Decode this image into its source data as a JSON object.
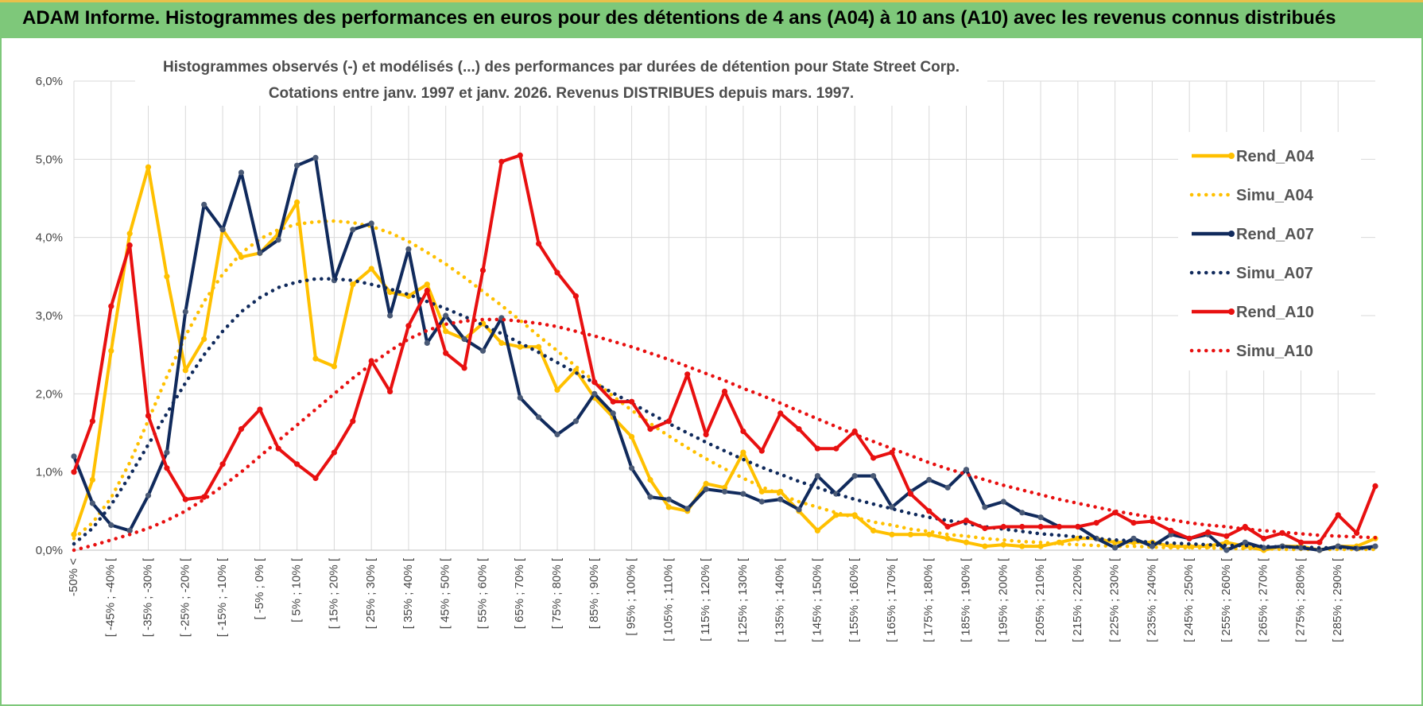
{
  "banner": {
    "title": "ADAM Informe. Histogrammes des performances en euros pour des détentions de 4 ans (A04) à 10 ans (A10) avec les revenus connus distribués"
  },
  "chart_data": {
    "type": "line",
    "title_line1": "Histogrammes observés (-) et modélisés (...) des performances par durées de détention pour State Street Corp.",
    "title_line2": "Cotations entre janv. 1997 et janv. 2026. Revenus DISTRIBUES depuis mars. 1997.",
    "ylim": [
      0,
      6
    ],
    "y_ticks": [
      "0,0%",
      "1,0%",
      "2,0%",
      "3,0%",
      "4,0%",
      "5,0%",
      "6,0%"
    ],
    "x_labels": [
      "-50% <",
      "[ -45% ; -40% [",
      "[ -35% ; -30% [",
      "[ -25% ; -20% [",
      "[ -15% ; -10% [",
      "[ -5% ; 0% [",
      "[ 5% ; 10% [",
      "[ 15% ; 20% [",
      "[ 25% ; 30% [",
      "[ 35% ; 40% [",
      "[ 45% ; 50% [",
      "[ 55% ; 60% [",
      "[ 65% ; 70% [",
      "[ 75% ; 80% [",
      "[ 85% ; 90% [",
      "[ 95% ; 100% [",
      "[ 105% ; 110% [",
      "[ 115% ; 120% [",
      "[ 125% ; 130% [",
      "[ 135% ; 140% [",
      "[ 145% ; 150% [",
      "[ 155% ; 160% [",
      "[ 165% ; 170% [",
      "[ 175% ; 180% [",
      "[ 185% ; 190% [",
      "[ 195% ; 200% [",
      "[ 205% ; 210% [",
      "[ 215% ; 220% [",
      "[ 225% ; 230% [",
      "[ 235% ; 240% [",
      "[ 245% ; 250% [",
      "[ 255% ; 260% [",
      "[ 265% ; 270% [",
      "[ 275% ; 280% [",
      "[ 285% ; 290% ["
    ],
    "n_points": 71,
    "series": [
      {
        "name": "Rend_A04",
        "color": "#FFC000",
        "style": "solid",
        "values": [
          0.2,
          0.9,
          2.55,
          4.05,
          4.9,
          3.5,
          2.3,
          2.7,
          4.1,
          3.75,
          3.8,
          4.05,
          4.45,
          2.45,
          2.35,
          3.4,
          3.6,
          3.3,
          3.25,
          3.4,
          2.8,
          2.7,
          2.9,
          2.65,
          2.6,
          2.6,
          2.05,
          2.3,
          1.95,
          1.7,
          1.45,
          0.9,
          0.55,
          0.5,
          0.85,
          0.8,
          1.25,
          0.75,
          0.75,
          0.5,
          0.25,
          0.45,
          0.45,
          0.25,
          0.2,
          0.2,
          0.2,
          0.15,
          0.1,
          0.05,
          0.07,
          0.05,
          0.05,
          0.1,
          0.15,
          0.15,
          0.1,
          0.1,
          0.1,
          0.05,
          0.05,
          0.05,
          0.1,
          0.05,
          0.0,
          0.05,
          0.05,
          0.0,
          0.05,
          0.05,
          0.15
        ]
      },
      {
        "name": "Simu_A04",
        "color": "#FFC000",
        "style": "dotted",
        "values": [
          0.15,
          0.35,
          0.67,
          1.12,
          1.66,
          2.22,
          2.74,
          3.18,
          3.53,
          3.8,
          3.98,
          4.1,
          4.17,
          4.2,
          4.21,
          4.19,
          4.14,
          4.06,
          3.95,
          3.81,
          3.66,
          3.49,
          3.31,
          3.13,
          2.94,
          2.74,
          2.55,
          2.35,
          2.16,
          1.97,
          1.79,
          1.62,
          1.46,
          1.31,
          1.17,
          1.04,
          0.92,
          0.81,
          0.71,
          0.62,
          0.55,
          0.48,
          0.42,
          0.36,
          0.32,
          0.27,
          0.24,
          0.2,
          0.18,
          0.15,
          0.13,
          0.11,
          0.1,
          0.08,
          0.07,
          0.06,
          0.05,
          0.05,
          0.04,
          0.03,
          0.03,
          0.03,
          0.02,
          0.02,
          0.02,
          0.01,
          0.01,
          0.01,
          0.01,
          0.01,
          0.01
        ]
      },
      {
        "name": "Rend_A07",
        "color": "#102A5C",
        "style": "solid",
        "values": [
          1.2,
          0.6,
          0.32,
          0.25,
          0.7,
          1.25,
          3.05,
          4.42,
          4.1,
          4.83,
          3.8,
          3.97,
          4.92,
          5.02,
          3.45,
          4.1,
          4.18,
          3.0,
          3.85,
          2.65,
          3.0,
          2.7,
          2.55,
          2.97,
          1.95,
          1.7,
          1.48,
          1.65,
          2.0,
          1.75,
          1.05,
          0.68,
          0.65,
          0.53,
          0.78,
          0.75,
          0.72,
          0.62,
          0.65,
          0.52,
          0.95,
          0.72,
          0.95,
          0.95,
          0.55,
          0.75,
          0.9,
          0.8,
          1.03,
          0.55,
          0.62,
          0.48,
          0.42,
          0.3,
          0.3,
          0.15,
          0.03,
          0.15,
          0.05,
          0.2,
          0.15,
          0.2,
          0.0,
          0.1,
          0.03,
          0.05,
          0.03,
          0.0,
          0.05,
          0.02,
          0.05
        ]
      },
      {
        "name": "Simu_A07",
        "color": "#102A5C",
        "style": "dotted",
        "values": [
          0.08,
          0.28,
          0.58,
          0.95,
          1.35,
          1.75,
          2.14,
          2.5,
          2.8,
          3.05,
          3.23,
          3.36,
          3.43,
          3.47,
          3.47,
          3.45,
          3.4,
          3.34,
          3.27,
          3.18,
          3.09,
          2.99,
          2.88,
          2.77,
          2.65,
          2.53,
          2.4,
          2.27,
          2.14,
          2.01,
          1.88,
          1.75,
          1.62,
          1.5,
          1.38,
          1.27,
          1.16,
          1.06,
          0.97,
          0.88,
          0.8,
          0.72,
          0.65,
          0.59,
          0.53,
          0.47,
          0.42,
          0.38,
          0.34,
          0.3,
          0.27,
          0.24,
          0.21,
          0.19,
          0.17,
          0.15,
          0.13,
          0.12,
          0.1,
          0.09,
          0.08,
          0.07,
          0.06,
          0.06,
          0.05,
          0.04,
          0.04,
          0.03,
          0.03,
          0.03,
          0.02
        ]
      },
      {
        "name": "Rend_A10",
        "color": "#E81010",
        "style": "solid",
        "values": [
          1.0,
          1.65,
          3.12,
          3.9,
          1.72,
          1.05,
          0.65,
          0.68,
          1.1,
          1.55,
          1.8,
          1.3,
          1.1,
          0.92,
          1.25,
          1.65,
          2.42,
          2.03,
          2.87,
          3.32,
          2.52,
          2.33,
          3.58,
          4.97,
          5.05,
          3.92,
          3.55,
          3.25,
          2.15,
          1.9,
          1.9,
          1.55,
          1.65,
          2.25,
          1.48,
          2.03,
          1.52,
          1.27,
          1.75,
          1.55,
          1.3,
          1.3,
          1.52,
          1.18,
          1.25,
          0.72,
          0.5,
          0.3,
          0.38,
          0.28,
          0.3,
          0.3,
          0.3,
          0.3,
          0.3,
          0.35,
          0.48,
          0.35,
          0.37,
          0.25,
          0.15,
          0.23,
          0.18,
          0.3,
          0.15,
          0.22,
          0.1,
          0.1,
          0.45,
          0.22,
          0.82
        ]
      },
      {
        "name": "Simu_A10",
        "color": "#E81010",
        "style": "dotted",
        "values": [
          0.0,
          0.06,
          0.13,
          0.2,
          0.28,
          0.38,
          0.5,
          0.65,
          0.82,
          1.0,
          1.2,
          1.4,
          1.6,
          1.8,
          2.0,
          2.2,
          2.38,
          2.55,
          2.7,
          2.81,
          2.89,
          2.93,
          2.95,
          2.95,
          2.93,
          2.9,
          2.86,
          2.8,
          2.74,
          2.67,
          2.6,
          2.52,
          2.44,
          2.35,
          2.26,
          2.17,
          2.07,
          1.98,
          1.88,
          1.78,
          1.68,
          1.58,
          1.48,
          1.39,
          1.3,
          1.21,
          1.12,
          1.04,
          0.97,
          0.9,
          0.83,
          0.77,
          0.71,
          0.65,
          0.6,
          0.55,
          0.5,
          0.46,
          0.42,
          0.39,
          0.35,
          0.32,
          0.3,
          0.27,
          0.25,
          0.23,
          0.21,
          0.19,
          0.18,
          0.17,
          0.16
        ]
      }
    ]
  }
}
